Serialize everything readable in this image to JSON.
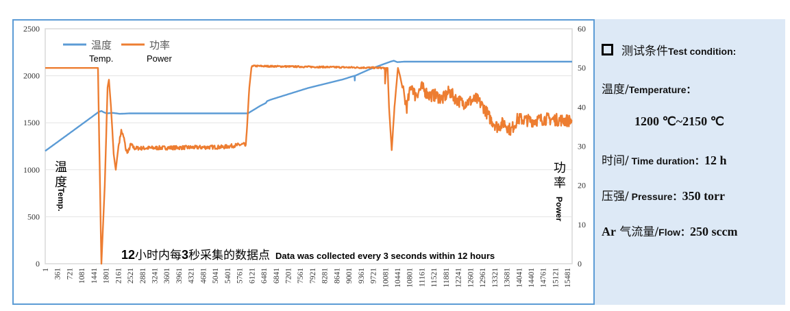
{
  "chart_data": {
    "type": "line",
    "title": "",
    "annotation": {
      "cn_prefix_num": "12",
      "cn_mid": "小时内每",
      "cn_num2": "3",
      "cn_end": "秒采集的数据点",
      "en": "Data was collected every 3 seconds within 12 hours"
    },
    "ylabel_left": {
      "cn": "温度",
      "en": "Temp."
    },
    "ylabel_right": {
      "cn": "功率",
      "en": "Power"
    },
    "y_left": {
      "lim": [
        0,
        2500
      ],
      "ticks": [
        "0",
        "500",
        "1000",
        "1500",
        "2000",
        "2500"
      ]
    },
    "y_right": {
      "lim": [
        0,
        60
      ],
      "ticks": [
        "0",
        "10",
        "20",
        "30",
        "40",
        "50",
        "60"
      ]
    },
    "x": {
      "lim": [
        1,
        15620
      ],
      "ticks": [
        "1",
        "361",
        "721",
        "1081",
        "1441",
        "1801",
        "2161",
        "2521",
        "2881",
        "3241",
        "3601",
        "3961",
        "4321",
        "4681",
        "5041",
        "5401",
        "5761",
        "6121",
        "6481",
        "6841",
        "7201",
        "7561",
        "7921",
        "8281",
        "8641",
        "9001",
        "9361",
        "9721",
        "10081",
        "10441",
        "10801",
        "11161",
        "11521",
        "11881",
        "12241",
        "12601",
        "12961",
        "13321",
        "13681",
        "14041",
        "14401",
        "14761",
        "15121",
        "15481"
      ]
    },
    "grid": true,
    "legend": {
      "placement": "top-left",
      "items": [
        {
          "cn": "温度",
          "en": "Temp.",
          "color": "#5b9bd5"
        },
        {
          "cn": "功率",
          "en": "Power",
          "color": "#ed7d31"
        }
      ]
    },
    "series": [
      {
        "name": "温度 Temp.",
        "axis": "left",
        "color": "#5b9bd5",
        "points": [
          [
            1,
            1200
          ],
          [
            691,
            1380
          ],
          [
            1300,
            1540
          ],
          [
            1584,
            1615
          ],
          [
            1666,
            1625
          ],
          [
            1747,
            1610
          ],
          [
            1828,
            1600
          ],
          [
            2011,
            1605
          ],
          [
            2214,
            1595
          ],
          [
            2518,
            1600
          ],
          [
            6010,
            1600
          ],
          [
            6375,
            1680
          ],
          [
            6540,
            1710
          ],
          [
            6578,
            1730
          ],
          [
            6680,
            1745
          ],
          [
            7796,
            1870
          ],
          [
            8811,
            1960
          ],
          [
            9170,
            2000
          ],
          [
            9177,
            1950
          ],
          [
            9184,
            2000
          ],
          [
            9623,
            2070
          ],
          [
            10232,
            2150
          ],
          [
            10334,
            2160
          ],
          [
            10436,
            2145
          ],
          [
            10639,
            2150
          ],
          [
            15620,
            2150
          ]
        ]
      },
      {
        "name": "功率 Power",
        "axis": "right",
        "color": "#ed7d31",
        "points": [
          [
            1,
            50
          ],
          [
            1564,
            50
          ],
          [
            1666,
            0
          ],
          [
            1767,
            20
          ],
          [
            1849,
            45
          ],
          [
            1889,
            47
          ],
          [
            1950,
            40
          ],
          [
            2031,
            28
          ],
          [
            2092,
            24
          ],
          [
            2173,
            30
          ],
          [
            2255,
            34
          ],
          [
            2336,
            32
          ],
          [
            2396,
            29
          ],
          [
            2457,
            28.5
          ],
          [
            2538,
            30.5
          ],
          [
            2640,
            29.5
          ],
          [
            5279,
            29.8
          ],
          [
            5888,
            30.5
          ],
          [
            5949,
            30
          ],
          [
            6051,
            45
          ],
          [
            6112,
            50
          ],
          [
            6132,
            50.5
          ],
          [
            10070,
            50
          ],
          [
            10075,
            46
          ],
          [
            10110,
            50
          ],
          [
            10151,
            50
          ],
          [
            10192,
            40
          ],
          [
            10273,
            29
          ],
          [
            10354,
            40
          ],
          [
            10456,
            50
          ],
          [
            10517,
            48
          ],
          [
            10659,
            42
          ],
          [
            10720,
            40
          ],
          [
            10862,
            46
          ],
          [
            10963,
            43
          ],
          [
            11166,
            45
          ],
          [
            11369,
            43
          ],
          [
            11572,
            43
          ],
          [
            11775,
            42
          ],
          [
            11978,
            44
          ],
          [
            12181,
            42
          ],
          [
            12384,
            41
          ],
          [
            12790,
            42
          ],
          [
            12993,
            40
          ],
          [
            13196,
            37
          ],
          [
            13399,
            35
          ],
          [
            13602,
            36
          ],
          [
            13805,
            34
          ],
          [
            14008,
            37
          ],
          [
            14414,
            36.5
          ],
          [
            14820,
            37
          ],
          [
            15620,
            36.5
          ]
        ]
      }
    ]
  },
  "side_panel": {
    "heading_cn": "测试条件",
    "heading_en": "Test condition:",
    "temp_cn": "温度/",
    "temp_en": "Temperature：",
    "temp_value": "1200 ℃~2150 ℃",
    "time_cn": "时间/",
    "time_en": " Time duration：",
    "time_value": "12 h",
    "pressure_cn": "压强/",
    "pressure_en": " Pressure：",
    "pressure_value": "350 torr",
    "flow_prefix": "Ar",
    "flow_cn": " 气流量/",
    "flow_en": "Flow：",
    "flow_value": "250 sccm"
  }
}
